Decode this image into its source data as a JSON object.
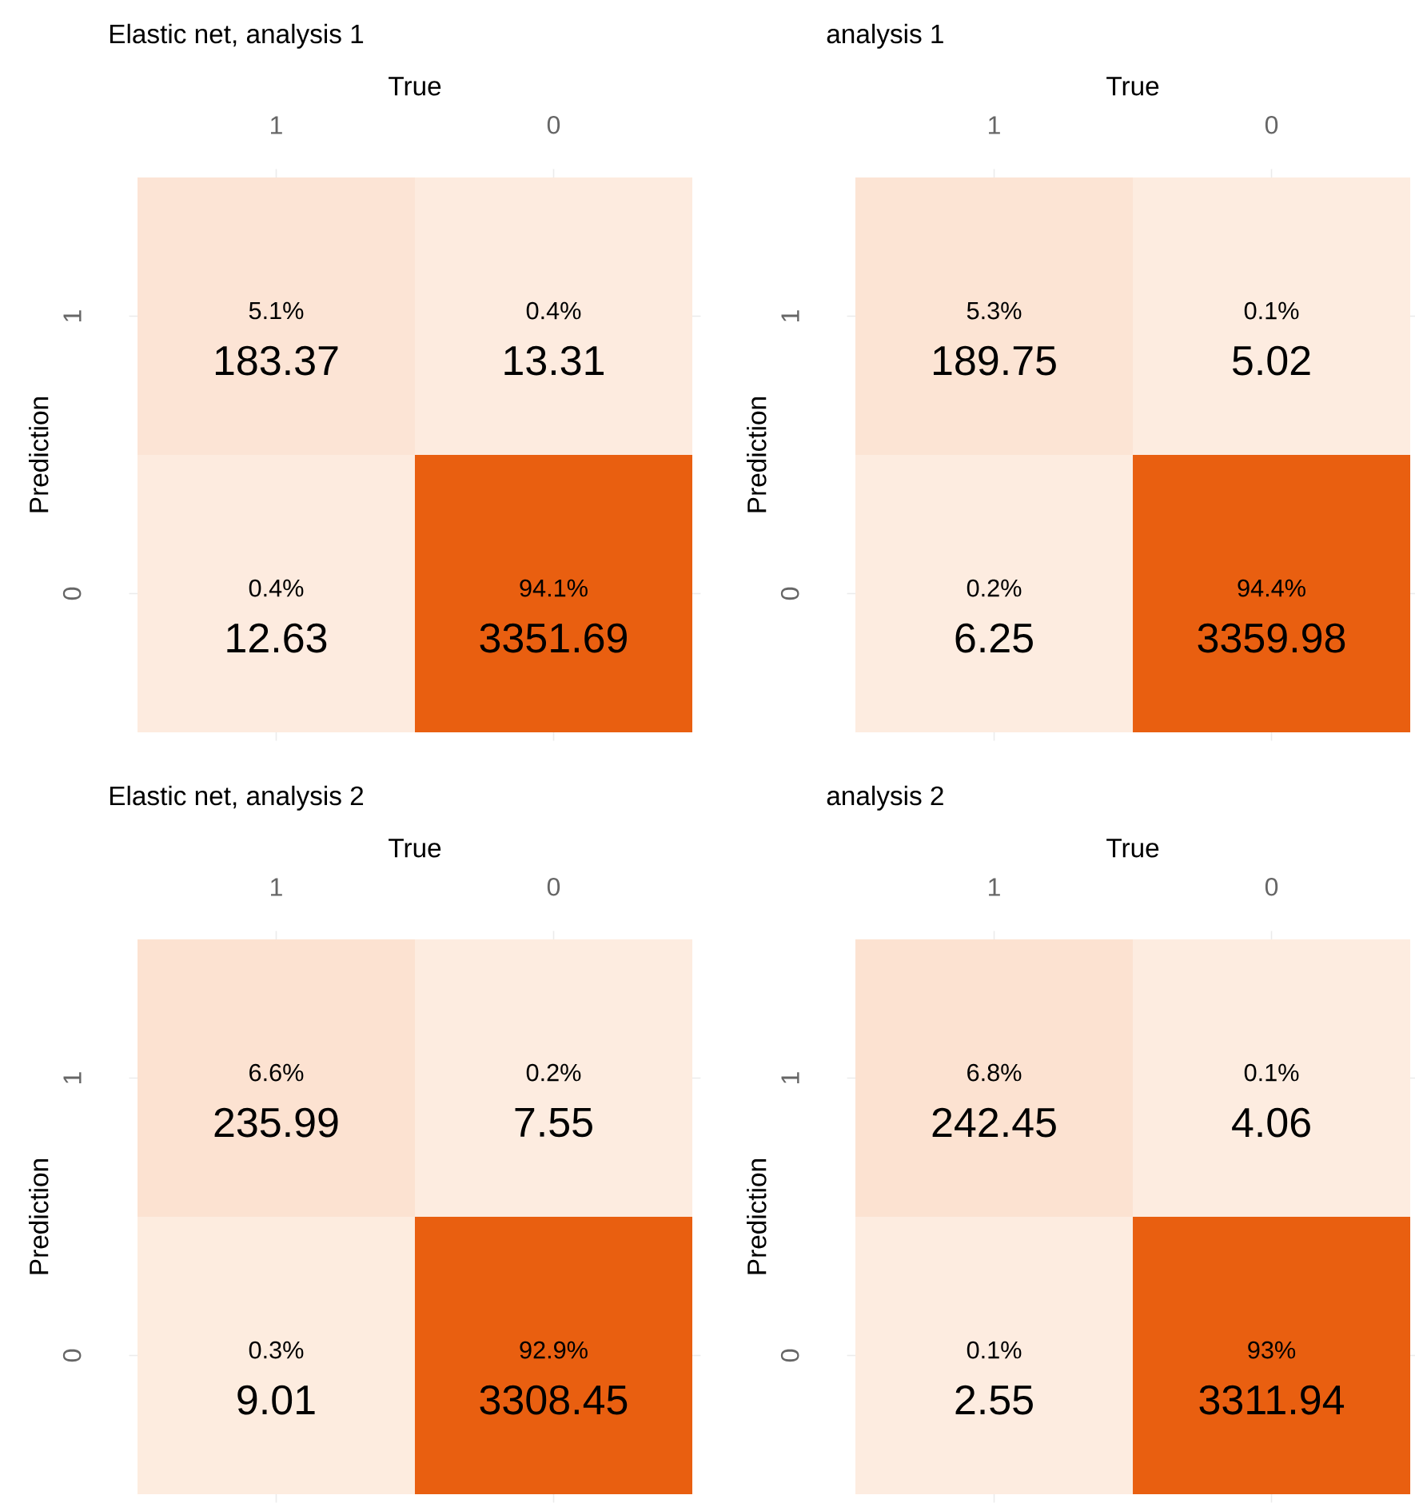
{
  "chart_data": [
    {
      "type": "heatmap",
      "title": "Elastic net, analysis 1",
      "xlabel": "True",
      "ylabel": "Prediction",
      "categories": [
        "1",
        "0"
      ],
      "y_categories": [
        "1",
        "0"
      ],
      "cells": [
        [
          183.37,
          13.31
        ],
        [
          12.63,
          3351.69
        ]
      ],
      "data_labels": true,
      "grid": true,
      "annotations": [
        "5.1%",
        "0.4%",
        "0.4%",
        "94.1%"
      ]
    },
    {
      "type": "heatmap",
      "title": "analysis 1",
      "xlabel": "True",
      "ylabel": "Prediction",
      "categories": [
        "1",
        "0"
      ],
      "y_categories": [
        "1",
        "0"
      ],
      "cells": [
        [
          189.75,
          5.02
        ],
        [
          6.25,
          3359.98
        ]
      ],
      "data_labels": true,
      "grid": true,
      "annotations": [
        "5.3%",
        "0.1%",
        "0.2%",
        "94.4%"
      ]
    },
    {
      "type": "heatmap",
      "title": "Elastic net, analysis 2",
      "xlabel": "True",
      "ylabel": "Prediction",
      "categories": [
        "1",
        "0"
      ],
      "y_categories": [
        "1",
        "0"
      ],
      "cells": [
        [
          235.99,
          7.55
        ],
        [
          9.01,
          3308.45
        ]
      ],
      "data_labels": true,
      "grid": true,
      "annotations": [
        "6.6%",
        "0.2%",
        "0.3%",
        "92.9%"
      ]
    },
    {
      "type": "heatmap",
      "title": "analysis 2",
      "xlabel": "True",
      "ylabel": "Prediction",
      "categories": [
        "1",
        "0"
      ],
      "y_categories": [
        "1",
        "0"
      ],
      "cells": [
        [
          242.45,
          4.06
        ],
        [
          2.55,
          3311.94
        ]
      ],
      "data_labels": true,
      "grid": true,
      "annotations": [
        "6.8%",
        "0.1%",
        "0.1%",
        "93%"
      ]
    }
  ]
}
